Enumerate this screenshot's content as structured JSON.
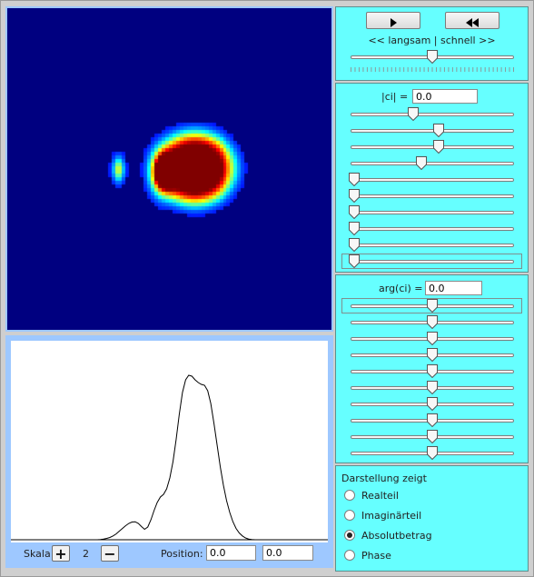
{
  "heatmap": {
    "colors": {
      "background": "#000080"
    }
  },
  "plot": {
    "line_color": "#000000",
    "profile": [
      0,
      0,
      0,
      0,
      0,
      0,
      0,
      0,
      0,
      0,
      0,
      0,
      0,
      0,
      0.3,
      0.8,
      1.5,
      2.5,
      4.2,
      6.5,
      9.5,
      12.5,
      15.5,
      18.0,
      19.5,
      19.8,
      18.0,
      14.5,
      11.5,
      14.0,
      22.0,
      32.0,
      41.0,
      47.0,
      50.0,
      56.0,
      68.0,
      86.0,
      110.0,
      138.0,
      162.0,
      176.0,
      181.0,
      180.0,
      176.0,
      173.0,
      171.0,
      170.0,
      164.0,
      150.0,
      128.0,
      104.0,
      80.0,
      60.0,
      43.0,
      30.0,
      20.0,
      12.5,
      7.5,
      4.2,
      2.0,
      0.8,
      0.3,
      0,
      0,
      0,
      0,
      0,
      0,
      0,
      0,
      0,
      0
    ]
  },
  "scale": {
    "label": "Skala:",
    "plus": "+",
    "value": "2",
    "minus": "−",
    "position_label": "Position:",
    "position_x": "0.0",
    "position_y": "0.0"
  },
  "speed": {
    "play_icon": "play-icon",
    "rewind_icon": "rewind-icon",
    "label": "<< langsam | schnell >>",
    "slider_value": 0.5
  },
  "magnitude": {
    "label": "|ci| =",
    "field_value": "0.0",
    "sliders": [
      0.38,
      0.54,
      0.54,
      0.43,
      0,
      0,
      0,
      0,
      0,
      0
    ],
    "selected_index": 9
  },
  "argument": {
    "label": "arg(ci) =",
    "field_value": "0.0",
    "sliders": [
      0.5,
      0.5,
      0.5,
      0.5,
      0.5,
      0.5,
      0.5,
      0.5,
      0.5,
      0.5
    ],
    "selected_index": 0
  },
  "display": {
    "title": "Darstellung zeigt",
    "options": [
      {
        "label": "Realteil",
        "selected": false
      },
      {
        "label": "Imaginärteil",
        "selected": false
      },
      {
        "label": "Absolutbetrag",
        "selected": true
      },
      {
        "label": "Phase",
        "selected": false
      }
    ]
  }
}
